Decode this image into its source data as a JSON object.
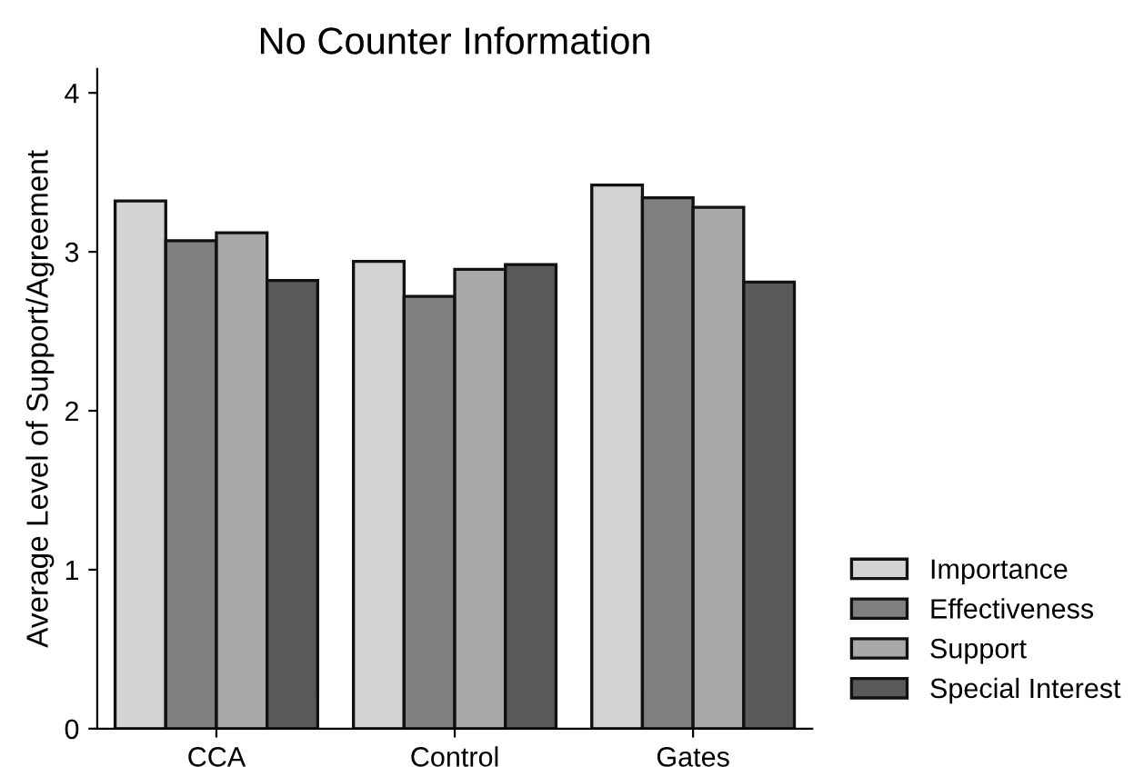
{
  "chart_data": {
    "type": "bar",
    "title": "No Counter Information",
    "ylabel": "Average Level of Support/Agreement",
    "categories": [
      "CCA",
      "Control",
      "Gates"
    ],
    "series": [
      {
        "name": "Importance",
        "color": "#d3d3d3",
        "values": [
          3.32,
          2.94,
          3.42
        ]
      },
      {
        "name": "Effectiveness",
        "color": "#808080",
        "values": [
          3.07,
          2.72,
          3.34
        ]
      },
      {
        "name": "Support",
        "color": "#a9a9a9",
        "values": [
          3.12,
          2.89,
          3.28
        ]
      },
      {
        "name": "Special Interest",
        "color": "#595959",
        "values": [
          2.82,
          2.92,
          2.81
        ]
      }
    ],
    "ylim": [
      0,
      4.15
    ],
    "yticks": [
      0,
      1,
      2,
      3,
      4
    ],
    "grid": false,
    "legend": "bottom right"
  }
}
